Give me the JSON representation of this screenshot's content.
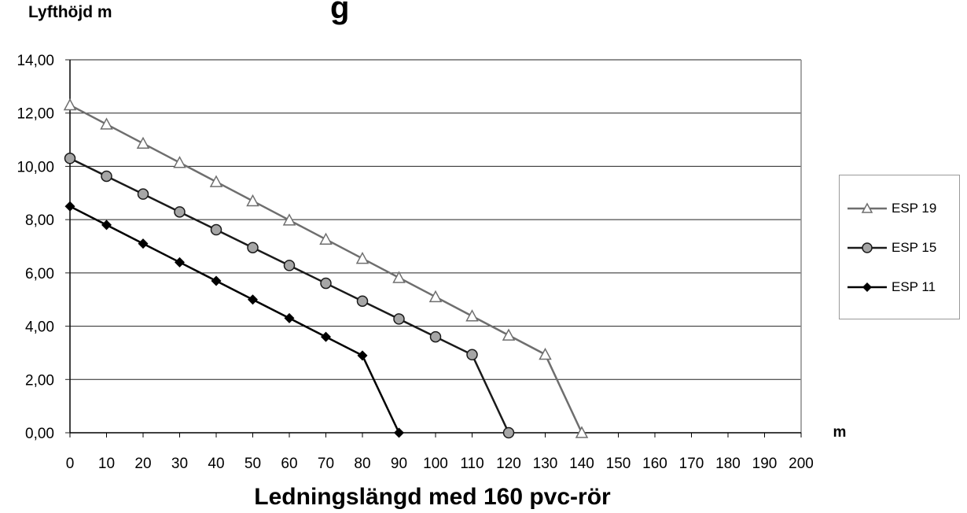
{
  "header": {
    "title_fragment": "g"
  },
  "chart_data": {
    "type": "line",
    "title": "",
    "xlabel": "Ledningslängd med 160 pvc-rör",
    "xunit": "m",
    "ylabel": "Lyfthöjd m",
    "xlim": [
      0,
      200
    ],
    "ylim": [
      0,
      14
    ],
    "x_ticks": [
      "0",
      "10",
      "20",
      "30",
      "40",
      "50",
      "60",
      "70",
      "80",
      "90",
      "100",
      "110",
      "120",
      "130",
      "140",
      "150",
      "160",
      "170",
      "180",
      "190",
      "200"
    ],
    "y_ticks": [
      "0,00",
      "2,00",
      "4,00",
      "6,00",
      "8,00",
      "10,00",
      "12,00",
      "14,00"
    ],
    "grid": "horizontal",
    "legend_position": "right",
    "series": [
      {
        "name": "ESP 19",
        "marker": "triangle-open",
        "color": "#6e6e6e",
        "x": [
          0,
          10,
          20,
          30,
          40,
          50,
          60,
          70,
          80,
          90,
          100,
          110,
          120,
          130,
          140
        ],
        "values": [
          12.3,
          11.58,
          10.86,
          10.14,
          9.42,
          8.7,
          7.98,
          7.26,
          6.54,
          5.82,
          5.1,
          4.38,
          3.66,
          2.94,
          0
        ]
      },
      {
        "name": "ESP 15",
        "marker": "circle-gray",
        "color": "#1a1a1a",
        "x": [
          0,
          10,
          20,
          30,
          40,
          50,
          60,
          70,
          80,
          90,
          100,
          110,
          120
        ],
        "values": [
          10.3,
          9.63,
          8.96,
          8.29,
          7.62,
          6.95,
          6.28,
          5.61,
          4.94,
          4.27,
          3.6,
          2.93,
          0
        ]
      },
      {
        "name": "ESP 11",
        "marker": "diamond-filled",
        "color": "#000000",
        "x": [
          0,
          10,
          20,
          30,
          40,
          50,
          60,
          70,
          80,
          90
        ],
        "values": [
          8.5,
          7.8,
          7.1,
          6.4,
          5.7,
          5.0,
          4.3,
          3.6,
          2.9,
          0
        ]
      }
    ]
  }
}
